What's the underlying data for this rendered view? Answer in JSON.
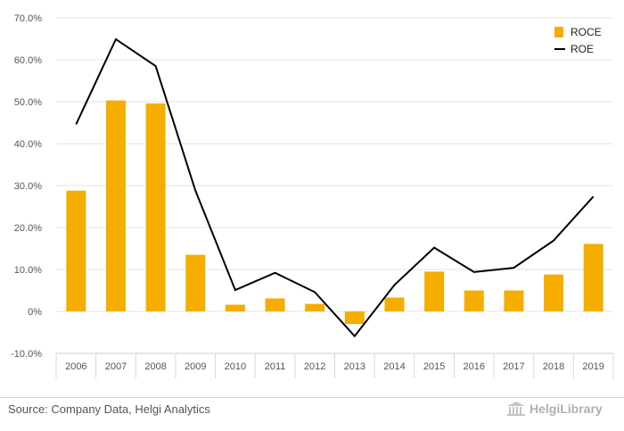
{
  "chart_data": {
    "type": "bar",
    "categories": [
      "2006",
      "2007",
      "2008",
      "2009",
      "2010",
      "2011",
      "2012",
      "2013",
      "2014",
      "2015",
      "2016",
      "2017",
      "2018",
      "2019"
    ],
    "series": [
      {
        "name": "ROCE",
        "type": "bar",
        "color": "#f5ad00",
        "values": [
          28.8,
          50.3,
          49.6,
          13.5,
          1.6,
          3.1,
          1.8,
          -3.0,
          3.3,
          9.5,
          5.0,
          5.0,
          8.8,
          16.1
        ]
      },
      {
        "name": "ROE",
        "type": "line",
        "color": "#000000",
        "values": [
          44.6,
          64.9,
          58.5,
          28.8,
          5.1,
          9.2,
          4.6,
          -5.9,
          6.3,
          15.2,
          9.4,
          10.4,
          16.9,
          27.4
        ]
      }
    ],
    "ylim": [
      -10,
      70
    ],
    "yticks": [
      -10,
      0,
      10,
      20,
      30,
      40,
      50,
      60,
      70
    ],
    "ytick_labels": [
      "-10.0%",
      "0%",
      "10.0%",
      "20.0%",
      "30.0%",
      "40.0%",
      "50.0%",
      "60.0%",
      "70.0%"
    ],
    "title": "",
    "xlabel": "",
    "ylabel": "",
    "grid": true,
    "legend_position": "top-right"
  },
  "footer": {
    "source": "Source: Company Data, Helgi Analytics",
    "brand": "HelgiLibrary"
  }
}
